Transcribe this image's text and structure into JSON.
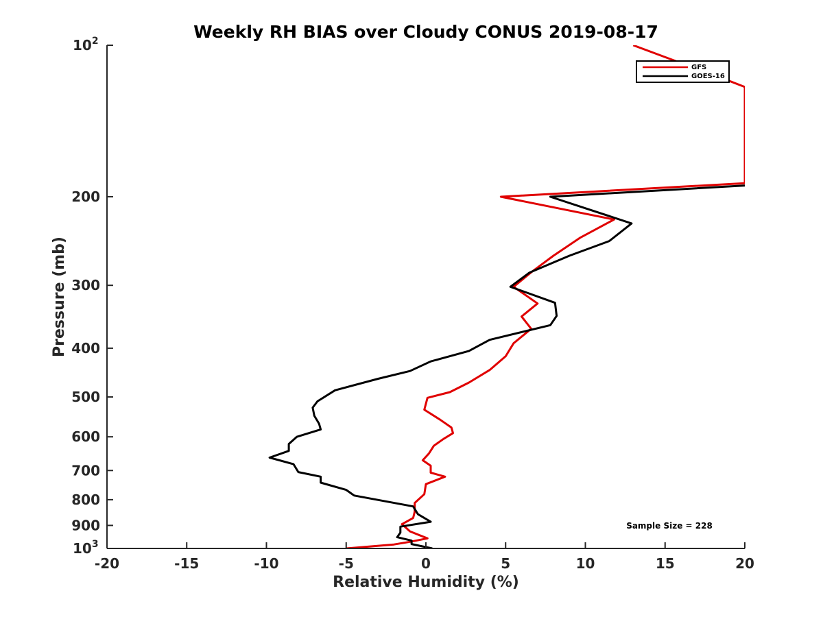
{
  "chart_data": {
    "type": "line",
    "title": "Weekly RH BIAS over Cloudy CONUS 2019-08-17",
    "xlabel": "Relative Humidity (%)",
    "ylabel": "Pressure (mb)",
    "xlim": [
      -20,
      20
    ],
    "ylim": [
      100,
      1000
    ],
    "yscale": "log",
    "yreversed": true,
    "x_ticks": [
      {
        "value": -20,
        "label": "-20"
      },
      {
        "value": -15,
        "label": "-15"
      },
      {
        "value": -10,
        "label": "-10"
      },
      {
        "value": -5,
        "label": "-5"
      },
      {
        "value": 0,
        "label": "0"
      },
      {
        "value": 5,
        "label": "5"
      },
      {
        "value": 10,
        "label": "10"
      },
      {
        "value": 15,
        "label": "15"
      },
      {
        "value": 20,
        "label": "20"
      }
    ],
    "y_ticks": [
      {
        "value": 100,
        "label": "10",
        "sup": "2"
      },
      {
        "value": 200,
        "label": "200",
        "sup": ""
      },
      {
        "value": 300,
        "label": "300",
        "sup": ""
      },
      {
        "value": 400,
        "label": "400",
        "sup": ""
      },
      {
        "value": 500,
        "label": "500",
        "sup": ""
      },
      {
        "value": 600,
        "label": "600",
        "sup": ""
      },
      {
        "value": 700,
        "label": "700",
        "sup": ""
      },
      {
        "value": 800,
        "label": "800",
        "sup": ""
      },
      {
        "value": 900,
        "label": "900",
        "sup": ""
      },
      {
        "value": 1000,
        "label": "10",
        "sup": "3"
      }
    ],
    "legend_position": "top-right",
    "annotation": "Sample Size = 228",
    "series": [
      {
        "name": "GFS",
        "color": "#e00000",
        "points": [
          [
            13.0,
            100
          ],
          [
            15.5,
            107
          ],
          [
            18.5,
            116
          ],
          [
            20.0,
            121
          ],
          [
            20.0,
            188
          ],
          [
            4.7,
            200
          ],
          [
            11.8,
            222
          ],
          [
            9.7,
            241
          ],
          [
            8.0,
            262
          ],
          [
            6.7,
            281
          ],
          [
            5.5,
            302
          ],
          [
            7.0,
            326
          ],
          [
            6.0,
            346
          ],
          [
            6.6,
            366
          ],
          [
            5.5,
            391
          ],
          [
            5.0,
            415
          ],
          [
            4.0,
            442
          ],
          [
            2.7,
            468
          ],
          [
            1.5,
            489
          ],
          [
            0.1,
            502
          ],
          [
            -0.1,
            530
          ],
          [
            0.9,
            555
          ],
          [
            1.6,
            575
          ],
          [
            1.7,
            590
          ],
          [
            1.1,
            606
          ],
          [
            0.5,
            625
          ],
          [
            0.2,
            647
          ],
          [
            -0.2,
            668
          ],
          [
            0.3,
            685
          ],
          [
            0.3,
            707
          ],
          [
            1.2,
            720
          ],
          [
            0.0,
            745
          ],
          [
            -0.1,
            780
          ],
          [
            -0.7,
            812
          ],
          [
            -0.7,
            845
          ],
          [
            -0.8,
            870
          ],
          [
            -1.5,
            895
          ],
          [
            -1.0,
            925
          ],
          [
            0.1,
            955
          ],
          [
            -1.0,
            970
          ],
          [
            -2.0,
            982
          ],
          [
            -5.0,
            1000
          ]
        ]
      },
      {
        "name": "GOES-16",
        "color": "#000000",
        "points": [
          [
            20.0,
            190
          ],
          [
            7.8,
            200
          ],
          [
            12.9,
            226
          ],
          [
            11.5,
            245
          ],
          [
            9.0,
            262
          ],
          [
            6.5,
            283
          ],
          [
            5.3,
            302
          ],
          [
            8.1,
            325
          ],
          [
            8.2,
            345
          ],
          [
            7.8,
            360
          ],
          [
            4.0,
            385
          ],
          [
            2.7,
            405
          ],
          [
            0.3,
            425
          ],
          [
            -1.0,
            444
          ],
          [
            -3.0,
            460
          ],
          [
            -5.7,
            485
          ],
          [
            -6.8,
            510
          ],
          [
            -7.1,
            525
          ],
          [
            -7.0,
            545
          ],
          [
            -6.7,
            565
          ],
          [
            -6.6,
            580
          ],
          [
            -8.1,
            600
          ],
          [
            -8.6,
            620
          ],
          [
            -8.6,
            640
          ],
          [
            -9.8,
            660
          ],
          [
            -8.3,
            680
          ],
          [
            -8.0,
            705
          ],
          [
            -6.6,
            720
          ],
          [
            -6.6,
            740
          ],
          [
            -5.0,
            765
          ],
          [
            -4.5,
            785
          ],
          [
            -0.8,
            825
          ],
          [
            -0.5,
            855
          ],
          [
            0.3,
            885
          ],
          [
            -1.6,
            905
          ],
          [
            -1.6,
            930
          ],
          [
            -1.8,
            950
          ],
          [
            -0.9,
            965
          ],
          [
            -0.9,
            980
          ],
          [
            0.4,
            1000
          ]
        ]
      }
    ]
  }
}
